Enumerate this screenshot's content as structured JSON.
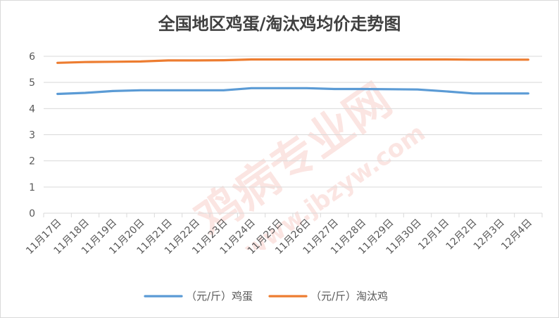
{
  "chart_data": {
    "type": "line",
    "title": "全国地区鸡蛋/淘汰鸡均价走势图",
    "categories": [
      "11月17日",
      "11月18日",
      "11月19日",
      "11月20日",
      "11月21日",
      "11月22日",
      "11月23日",
      "11月24日",
      "11月25日",
      "11月26日",
      "11月27日",
      "11月28日",
      "11月29日",
      "11月30日",
      "12月1日",
      "12月2日",
      "12月3日",
      "12月4日"
    ],
    "ylim": [
      0,
      6
    ],
    "yticks": [
      "0",
      "1",
      "2",
      "3",
      "4",
      "5",
      "6"
    ],
    "grid": true,
    "legend_position": "bottom",
    "series": [
      {
        "name": "（元/斤）鸡蛋",
        "color": "#5b9bd5",
        "values": [
          4.56,
          4.6,
          4.67,
          4.7,
          4.7,
          4.7,
          4.7,
          4.78,
          4.78,
          4.78,
          4.75,
          4.75,
          4.74,
          4.73,
          4.66,
          4.58,
          4.58,
          4.58
        ]
      },
      {
        "name": "（元/斤）淘汰鸡",
        "color": "#ed7d31",
        "values": [
          5.75,
          5.78,
          5.79,
          5.8,
          5.84,
          5.84,
          5.85,
          5.88,
          5.88,
          5.88,
          5.88,
          5.88,
          5.88,
          5.88,
          5.88,
          5.87,
          5.87,
          5.87
        ]
      }
    ],
    "watermark": "鸡病专业网 www.jbzyw.com"
  }
}
